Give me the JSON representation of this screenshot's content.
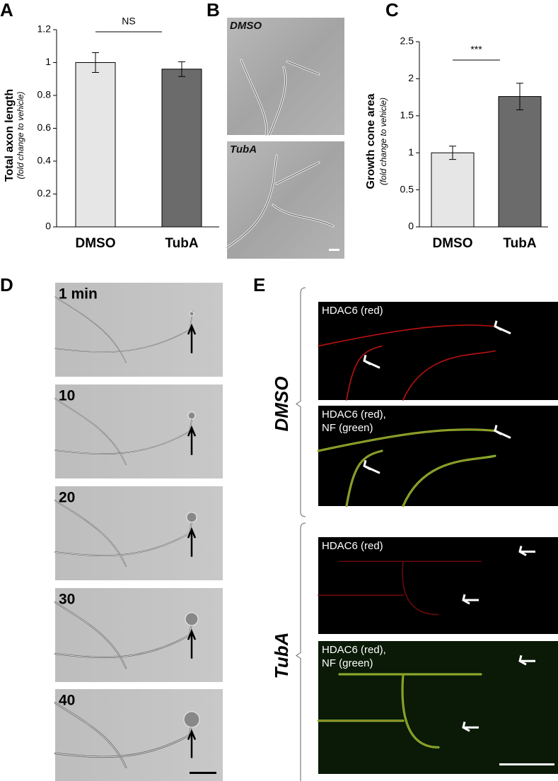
{
  "chart_data": [
    {
      "type": "bar",
      "panel": "A",
      "ylabel": "Total axon length",
      "ylabel_note": "(fold change to vehicle)",
      "annotation": "NS",
      "categories": [
        "DMSO",
        "TubA"
      ],
      "values": [
        1.0,
        0.96
      ],
      "errors": [
        0.06,
        0.045
      ],
      "colors": [
        "#e6e6e6",
        "#6b6b6b"
      ],
      "ylim": [
        0,
        1.2
      ],
      "yticks": [
        0,
        0.2,
        0.4,
        0.6,
        0.8,
        1,
        1.2
      ]
    },
    {
      "type": "bar",
      "panel": "C",
      "ylabel": "Growth cone area",
      "ylabel_note": "(fold change to vehicle)",
      "annotation": "***",
      "categories": [
        "DMSO",
        "TubA"
      ],
      "values": [
        1.0,
        1.76
      ],
      "errors": [
        0.09,
        0.18
      ],
      "colors": [
        "#e6e6e6",
        "#6b6b6b"
      ],
      "ylim": [
        0,
        2.5
      ],
      "yticks": [
        0,
        0.5,
        1,
        1.5,
        2,
        2.5
      ]
    }
  ],
  "panels": {
    "B": {
      "label": "B",
      "images": [
        "DMSO",
        "TubA"
      ]
    },
    "D": {
      "label": "D",
      "frames": [
        "1 min",
        "10",
        "20",
        "30",
        "40"
      ]
    },
    "E": {
      "label": "E",
      "groups": [
        {
          "name": "DMSO",
          "images": [
            [
              "HDAC6 (red)"
            ],
            [
              "HDAC6 (red),",
              "NF (green)"
            ]
          ]
        },
        {
          "name": "TubA",
          "images": [
            [
              "HDAC6 (red)"
            ],
            [
              "HDAC6 (red),",
              "NF (green)"
            ]
          ]
        }
      ]
    }
  }
}
